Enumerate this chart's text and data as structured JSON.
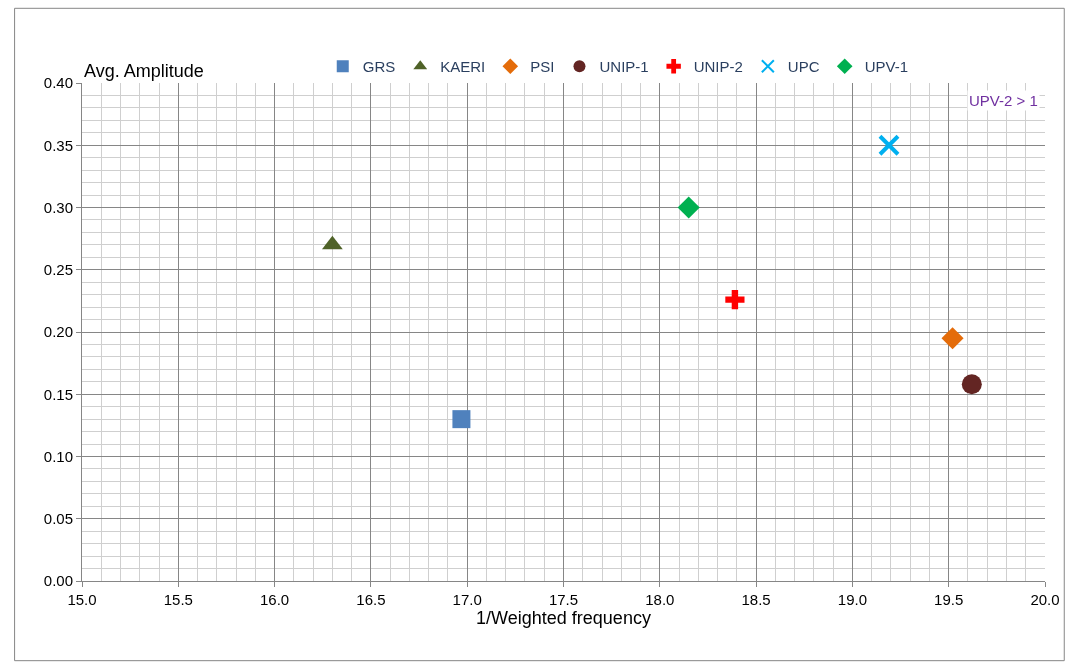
{
  "chart_data": {
    "type": "scatter",
    "xlabel": "1/Weighted frequency",
    "ylabel": "Avg. Amplitude",
    "series": [
      {
        "name": "GRS",
        "color": "#4f81bd",
        "marker": "square",
        "x": [
          16.97
        ],
        "values": [
          0.13
        ]
      },
      {
        "name": "KAERI",
        "color": "#4f6228",
        "marker": "triangle",
        "x": [
          16.3
        ],
        "values": [
          0.27
        ]
      },
      {
        "name": "PSI",
        "color": "#e46c0a",
        "marker": "diamond",
        "x": [
          19.52
        ],
        "values": [
          0.195
        ]
      },
      {
        "name": "UNIP-1",
        "color": "#632523",
        "marker": "circle",
        "x": [
          19.62
        ],
        "values": [
          0.158
        ]
      },
      {
        "name": "UNIP-2",
        "color": "#ff0000",
        "marker": "cross",
        "x": [
          18.39
        ],
        "values": [
          0.226
        ]
      },
      {
        "name": "UPC",
        "color": "#00b0f0",
        "marker": "x",
        "x": [
          19.19
        ],
        "values": [
          0.35
        ]
      },
      {
        "name": "UPV-1",
        "color": "#00b050",
        "marker": "diamond",
        "x": [
          18.15
        ],
        "values": [
          0.3
        ]
      }
    ],
    "annotations": [
      "UPV-2 > 1"
    ],
    "xlim": [
      15,
      20
    ],
    "ylim": [
      0,
      0.4
    ],
    "xticks": [
      {
        "value": 15,
        "label": "15.0"
      },
      {
        "value": 15.5,
        "label": "15.5"
      },
      {
        "value": 16,
        "label": "16.0"
      },
      {
        "value": 16.5,
        "label": "16.5"
      },
      {
        "value": 17,
        "label": "17.0"
      },
      {
        "value": 17.5,
        "label": "17.5"
      },
      {
        "value": 18,
        "label": "18.0"
      },
      {
        "value": 18.5,
        "label": "18.5"
      },
      {
        "value": 19,
        "label": "19.0"
      },
      {
        "value": 19.5,
        "label": "19.5"
      },
      {
        "value": 20,
        "label": "20.0"
      }
    ],
    "yticks": [
      {
        "value": 0,
        "label": "0.00"
      },
      {
        "value": 0.05,
        "label": "0.05"
      },
      {
        "value": 0.1,
        "label": "0.10"
      },
      {
        "value": 0.15,
        "label": "0.15"
      },
      {
        "value": 0.2,
        "label": "0.20"
      },
      {
        "value": 0.25,
        "label": "0.25"
      },
      {
        "value": 0.3,
        "label": "0.30"
      },
      {
        "value": 0.35,
        "label": "0.35"
      },
      {
        "value": 0.4,
        "label": "0.40"
      }
    ],
    "grid": true,
    "legend": "top"
  }
}
